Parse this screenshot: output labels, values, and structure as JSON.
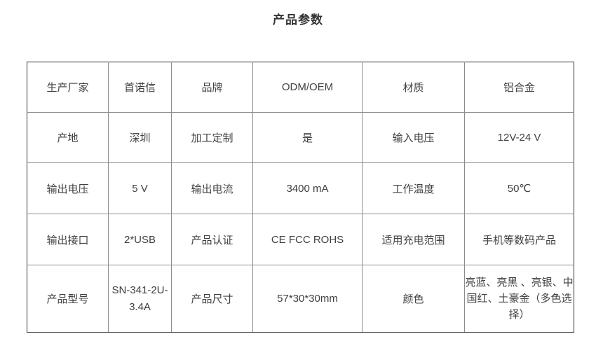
{
  "page": {
    "title": "产品参数"
  },
  "table": {
    "rows": [
      [
        "生产厂家",
        "首诺信",
        "品牌",
        "ODM/OEM",
        "材质",
        "铝合金"
      ],
      [
        "产地",
        "深圳",
        "加工定制",
        "是",
        "输入电压",
        "12V-24 V"
      ],
      [
        "输出电压",
        "5 V",
        "输出电流",
        "3400 mA",
        "工作温度",
        "50℃"
      ],
      [
        "输出接口",
        "2*USB",
        "产品认证",
        "CE FCC ROHS",
        "适用充电范围",
        "手机等数码产品"
      ],
      [
        "产品型号",
        "SN-341-2U-3.4A",
        "产品尺寸",
        "57*30*30mm",
        "颜色",
        "亮蓝、亮黑 、亮银、中国红、土豪金（多色选择）"
      ]
    ]
  },
  "colors": {
    "text": "#404040",
    "title_text": "#333333",
    "outer_border": "#2f2f2f",
    "inner_border": "#8c8c8c",
    "background": "#ffffff"
  }
}
